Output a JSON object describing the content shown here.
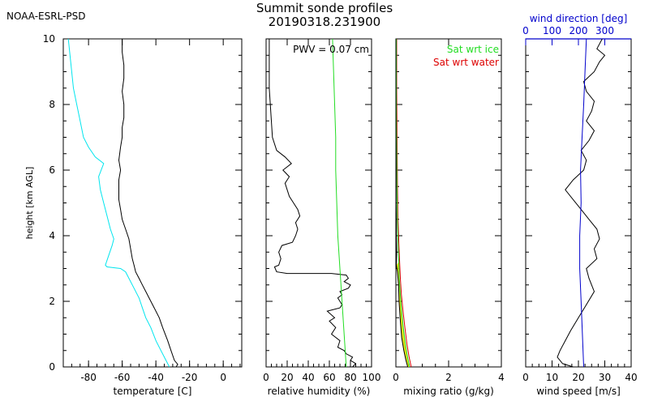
{
  "header": {
    "org": "NOAA-ESRL-PSD",
    "title": "Summit sonde profiles",
    "subtitle": "20190318.231900"
  },
  "colors": {
    "axes": "#000000",
    "temperature": "#000000",
    "dewpoint": "#00e5ee",
    "rh": "#000000",
    "rh_sat_ice": "#22dd22",
    "mixing_ratio": "#000000",
    "sat_ice": "#22dd22",
    "sat_water": "#dd0000",
    "sat_ice_fill": "#e0e000",
    "wind_speed": "#000000",
    "wind_direction": "#0000cc"
  },
  "chart_data": [
    {
      "type": "line",
      "ylabel": "height [km AGL]",
      "xlabel": "temperature [C]",
      "xlim": [
        -95,
        11
      ],
      "ylim": [
        0,
        10
      ],
      "xticks": [
        "-80",
        "-60",
        "-40",
        "-20",
        "0"
      ],
      "xtick_values": [
        -80,
        -60,
        -40,
        -20,
        0
      ],
      "yticks": [
        "0",
        "2",
        "4",
        "6",
        "8",
        "10"
      ],
      "ytick_values": [
        0,
        2,
        4,
        6,
        8,
        10
      ],
      "series": [
        {
          "key": "temperature",
          "points": [
            [
              -28,
              0.0
            ],
            [
              -27,
              0.08
            ],
            [
              -29,
              0.2
            ],
            [
              -31,
              0.5
            ],
            [
              -33,
              0.8
            ],
            [
              -36,
              1.2
            ],
            [
              -38,
              1.5
            ],
            [
              -41,
              1.8
            ],
            [
              -44,
              2.1
            ],
            [
              -46,
              2.3
            ],
            [
              -48,
              2.5
            ],
            [
              -50,
              2.7
            ],
            [
              -52,
              2.9
            ],
            [
              -53,
              3.1
            ],
            [
              -54,
              3.3
            ],
            [
              -55,
              3.6
            ],
            [
              -56,
              3.9
            ],
            [
              -58,
              4.2
            ],
            [
              -60,
              4.5
            ],
            [
              -61,
              4.8
            ],
            [
              -62,
              5.1
            ],
            [
              -62,
              5.4
            ],
            [
              -62,
              5.7
            ],
            [
              -61,
              6.0
            ],
            [
              -62,
              6.3
            ],
            [
              -61,
              6.7
            ],
            [
              -60,
              7.0
            ],
            [
              -60,
              7.3
            ],
            [
              -59,
              7.6
            ],
            [
              -59,
              8.0
            ],
            [
              -60,
              8.4
            ],
            [
              -59,
              8.8
            ],
            [
              -59,
              9.2
            ],
            [
              -60,
              9.6
            ],
            [
              -60,
              10.0
            ]
          ]
        },
        {
          "key": "dewpoint",
          "points": [
            [
              -32,
              0.0
            ],
            [
              -34,
              0.2
            ],
            [
              -37,
              0.5
            ],
            [
              -40,
              0.8
            ],
            [
              -43,
              1.2
            ],
            [
              -46,
              1.5
            ],
            [
              -48,
              1.8
            ],
            [
              -50,
              2.1
            ],
            [
              -53,
              2.4
            ],
            [
              -56,
              2.7
            ],
            [
              -58,
              2.9
            ],
            [
              -61,
              3.0
            ],
            [
              -69,
              3.05
            ],
            [
              -70,
              3.1
            ],
            [
              -68,
              3.4
            ],
            [
              -66,
              3.7
            ],
            [
              -65,
              3.9
            ],
            [
              -67,
              4.2
            ],
            [
              -69,
              4.6
            ],
            [
              -71,
              5.0
            ],
            [
              -73,
              5.4
            ],
            [
              -74,
              5.8
            ],
            [
              -71,
              6.2
            ],
            [
              -76,
              6.4
            ],
            [
              -80,
              6.7
            ],
            [
              -83,
              7.0
            ],
            [
              -85,
              7.5
            ],
            [
              -87,
              8.0
            ],
            [
              -89,
              8.5
            ],
            [
              -90,
              9.0
            ],
            [
              -91,
              9.5
            ],
            [
              -92,
              10.0
            ]
          ]
        }
      ]
    },
    {
      "type": "line",
      "xlabel": "relative humidity (%)",
      "xlim": [
        0,
        100
      ],
      "ylim": [
        0,
        10
      ],
      "xticks": [
        "0",
        "20",
        "40",
        "60",
        "80",
        "100"
      ],
      "xtick_values": [
        0,
        20,
        40,
        60,
        80,
        100
      ],
      "annotation": "PWV = 0.07 cm",
      "series": [
        {
          "key": "rh",
          "points": [
            [
              82,
              0.0
            ],
            [
              85,
              0.1
            ],
            [
              80,
              0.2
            ],
            [
              82,
              0.3
            ],
            [
              76,
              0.4
            ],
            [
              74,
              0.5
            ],
            [
              68,
              0.6
            ],
            [
              70,
              0.8
            ],
            [
              62,
              1.0
            ],
            [
              66,
              1.2
            ],
            [
              60,
              1.4
            ],
            [
              65,
              1.5
            ],
            [
              58,
              1.7
            ],
            [
              70,
              1.8
            ],
            [
              72,
              1.9
            ],
            [
              70,
              2.0
            ],
            [
              68,
              2.1
            ],
            [
              72,
              2.2
            ],
            [
              70,
              2.3
            ],
            [
              78,
              2.4
            ],
            [
              80,
              2.5
            ],
            [
              74,
              2.6
            ],
            [
              78,
              2.7
            ],
            [
              76,
              2.8
            ],
            [
              62,
              2.85
            ],
            [
              20,
              2.85
            ],
            [
              10,
              2.9
            ],
            [
              8,
              3.05
            ],
            [
              12,
              3.1
            ],
            [
              14,
              3.3
            ],
            [
              12,
              3.5
            ],
            [
              15,
              3.7
            ],
            [
              25,
              3.8
            ],
            [
              28,
              4.0
            ],
            [
              30,
              4.2
            ],
            [
              28,
              4.4
            ],
            [
              32,
              4.6
            ],
            [
              30,
              4.8
            ],
            [
              26,
              5.0
            ],
            [
              22,
              5.2
            ],
            [
              20,
              5.4
            ],
            [
              18,
              5.6
            ],
            [
              22,
              5.8
            ],
            [
              16,
              6.0
            ],
            [
              24,
              6.2
            ],
            [
              18,
              6.4
            ],
            [
              10,
              6.6
            ],
            [
              6,
              7.0
            ],
            [
              5,
              7.5
            ],
            [
              4,
              8.0
            ],
            [
              3,
              8.5
            ],
            [
              3,
              9.0
            ],
            [
              3,
              9.5
            ],
            [
              3,
              10.0
            ]
          ]
        },
        {
          "key": "rh_sat_ice",
          "points": [
            [
              76,
              0.0
            ],
            [
              74,
              1.0
            ],
            [
              72,
              2.0
            ],
            [
              70,
              3.0
            ],
            [
              68,
              4.0
            ],
            [
              67,
              5.0
            ],
            [
              66,
              6.0
            ],
            [
              66,
              7.0
            ],
            [
              65,
              8.0
            ],
            [
              64,
              9.0
            ],
            [
              63,
              10.0
            ]
          ]
        }
      ]
    },
    {
      "type": "line",
      "xlabel": "mixing ratio (g/kg)",
      "xlim": [
        0,
        4
      ],
      "ylim": [
        0,
        10
      ],
      "xticks": [
        "0",
        "2",
        "4"
      ],
      "xtick_values": [
        0,
        2,
        4
      ],
      "legend": [
        "Sat wrt ice",
        "Sat wrt water"
      ],
      "series": [
        {
          "key": "sat_water",
          "points": [
            [
              0.58,
              0.0
            ],
            [
              0.5,
              0.3
            ],
            [
              0.42,
              0.7
            ],
            [
              0.34,
              1.2
            ],
            [
              0.27,
              1.7
            ],
            [
              0.21,
              2.2
            ],
            [
              0.17,
              2.7
            ],
            [
              0.14,
              3.2
            ],
            [
              0.11,
              3.8
            ],
            [
              0.08,
              4.5
            ],
            [
              0.06,
              5.5
            ],
            [
              0.05,
              6.5
            ],
            [
              0.04,
              7.5
            ],
            [
              0.03,
              8.5
            ],
            [
              0.03,
              10.0
            ]
          ]
        },
        {
          "key": "sat_ice",
          "points": [
            [
              0.52,
              0.0
            ],
            [
              0.44,
              0.3
            ],
            [
              0.36,
              0.7
            ],
            [
              0.28,
              1.2
            ],
            [
              0.22,
              1.7
            ],
            [
              0.17,
              2.2
            ],
            [
              0.13,
              2.7
            ],
            [
              0.11,
              3.2
            ],
            [
              0.08,
              3.8
            ],
            [
              0.06,
              4.5
            ],
            [
              0.04,
              5.5
            ],
            [
              0.03,
              6.5
            ],
            [
              0.02,
              7.5
            ],
            [
              0.02,
              8.5
            ],
            [
              0.02,
              10.0
            ]
          ]
        },
        {
          "key": "mixing_ratio",
          "points": [
            [
              0.45,
              0.0
            ],
            [
              0.38,
              0.2
            ],
            [
              0.3,
              0.5
            ],
            [
              0.22,
              0.9
            ],
            [
              0.17,
              1.4
            ],
            [
              0.12,
              2.0
            ],
            [
              0.1,
              2.5
            ],
            [
              0.06,
              2.9
            ],
            [
              0.02,
              3.1
            ],
            [
              0.03,
              3.5
            ],
            [
              0.02,
              4.0
            ],
            [
              0.02,
              4.5
            ],
            [
              0.01,
              5.0
            ],
            [
              0.01,
              6.0
            ],
            [
              0.0,
              7.0
            ],
            [
              0.0,
              8.0
            ],
            [
              0.0,
              9.0
            ],
            [
              0.0,
              10.0
            ]
          ]
        }
      ]
    },
    {
      "type": "line",
      "xlabel": "wind speed [m/s]",
      "xlim": [
        0,
        40
      ],
      "ylim": [
        0,
        10
      ],
      "xticks": [
        "0",
        "10",
        "20",
        "30",
        "40"
      ],
      "xtick_values": [
        0,
        10,
        20,
        30,
        40
      ],
      "top_axis": {
        "label": "wind direction [deg]",
        "lim": [
          0,
          400
        ],
        "ticks": [
          "0",
          "100",
          "200",
          "300"
        ],
        "tick_values": [
          0,
          100,
          200,
          300
        ]
      },
      "series": [
        {
          "key": "wind_speed",
          "points": [
            [
              18,
              0.0
            ],
            [
              14,
              0.1
            ],
            [
              12,
              0.3
            ],
            [
              13,
              0.5
            ],
            [
              15,
              0.8
            ],
            [
              17,
              1.1
            ],
            [
              20,
              1.5
            ],
            [
              23,
              1.9
            ],
            [
              26,
              2.3
            ],
            [
              24,
              2.7
            ],
            [
              23,
              3.0
            ],
            [
              27,
              3.3
            ],
            [
              26,
              3.6
            ],
            [
              28,
              3.9
            ],
            [
              27,
              4.2
            ],
            [
              24,
              4.5
            ],
            [
              21,
              4.8
            ],
            [
              18,
              5.1
            ],
            [
              15,
              5.4
            ],
            [
              18,
              5.7
            ],
            [
              22,
              6.0
            ],
            [
              23,
              6.3
            ],
            [
              21,
              6.6
            ],
            [
              24,
              6.9
            ],
            [
              26,
              7.2
            ],
            [
              23,
              7.5
            ],
            [
              25,
              7.8
            ],
            [
              26,
              8.1
            ],
            [
              23,
              8.4
            ],
            [
              22,
              8.7
            ],
            [
              26,
              9.0
            ],
            [
              28,
              9.3
            ],
            [
              30,
              9.5
            ],
            [
              27,
              9.7
            ],
            [
              29,
              10.0
            ]
          ]
        },
        {
          "key": "wind_direction",
          "axis": "top",
          "points": [
            [
              220,
              0.0
            ],
            [
              215,
              1.0
            ],
            [
              210,
              2.0
            ],
            [
              205,
              3.0
            ],
            [
              205,
              4.0
            ],
            [
              210,
              5.0
            ],
            [
              208,
              6.0
            ],
            [
              214,
              7.0
            ],
            [
              220,
              8.0
            ],
            [
              225,
              9.0
            ],
            [
              230,
              10.0
            ]
          ]
        }
      ]
    }
  ]
}
